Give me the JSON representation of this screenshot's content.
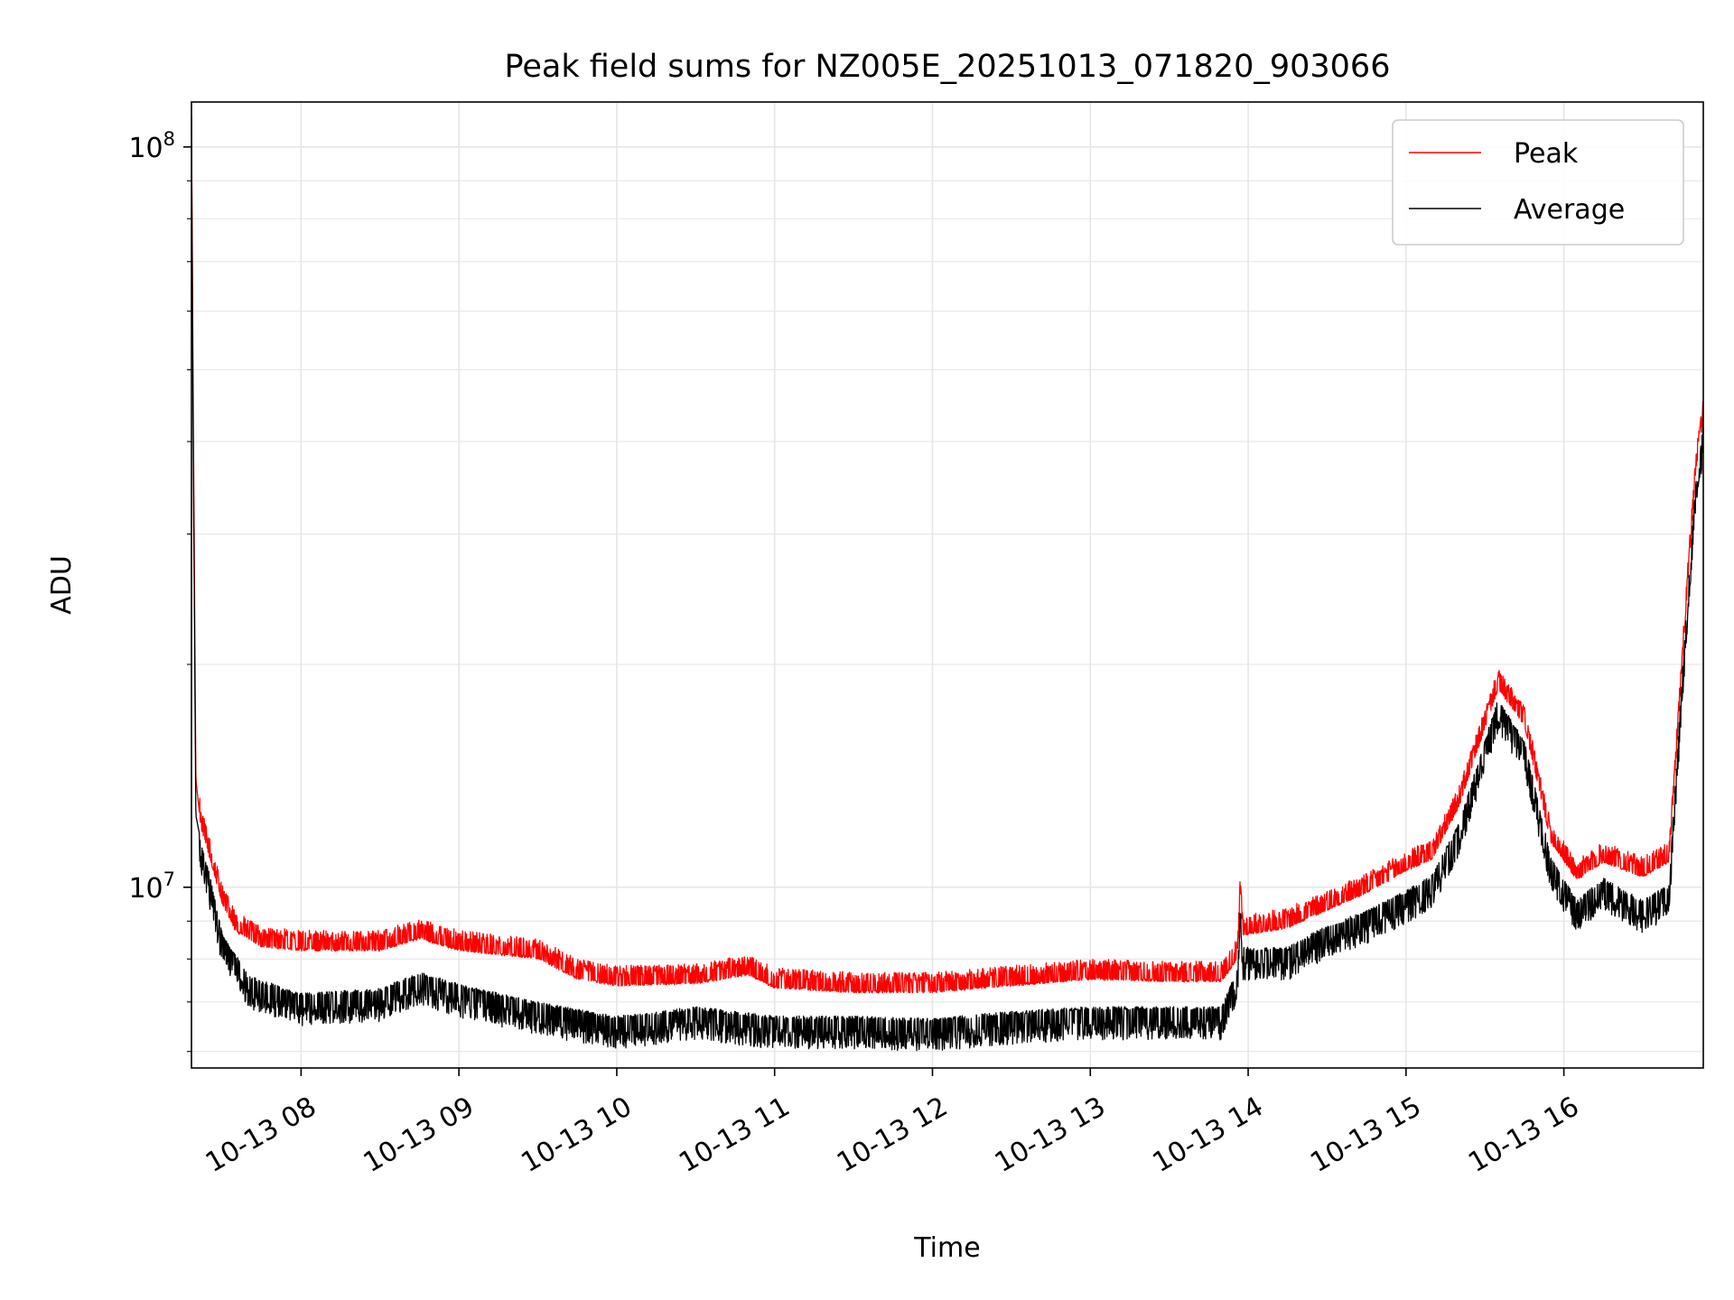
{
  "chart_data": {
    "type": "line",
    "title": "Peak field sums for NZ005E_20251013_071820_903066",
    "xlabel": "Time",
    "ylabel": "ADU",
    "y_scale": "log",
    "ylim": [
      5700000,
      115000000
    ],
    "xlim": [
      "2025-10-13T07:18:20",
      "2025-10-13T16:53:00"
    ],
    "x_ticks": [
      {
        "value": "2025-10-13T08:00",
        "label": "10-13 08"
      },
      {
        "value": "2025-10-13T09:00",
        "label": "10-13 09"
      },
      {
        "value": "2025-10-13T10:00",
        "label": "10-13 10"
      },
      {
        "value": "2025-10-13T11:00",
        "label": "10-13 11"
      },
      {
        "value": "2025-10-13T12:00",
        "label": "10-13 12"
      },
      {
        "value": "2025-10-13T13:00",
        "label": "10-13 13"
      },
      {
        "value": "2025-10-13T14:00",
        "label": "10-13 14"
      },
      {
        "value": "2025-10-13T15:00",
        "label": "10-13 15"
      },
      {
        "value": "2025-10-13T16:00",
        "label": "10-13 16"
      }
    ],
    "y_ticks": [
      {
        "value": 10000000,
        "base": "10",
        "exp": "7"
      },
      {
        "value": 100000000,
        "base": "10",
        "exp": "8"
      }
    ],
    "grid": true,
    "legend_position": "top-right",
    "series": [
      {
        "name": "Peak",
        "color": "#ff0000",
        "noise": "positive",
        "points": [
          [
            "2025-10-13T07:18:20",
            110000000
          ],
          [
            "2025-10-13T07:19",
            45000000
          ],
          [
            "2025-10-13T07:20",
            14000000
          ],
          [
            "2025-10-13T07:22",
            12000000
          ],
          [
            "2025-10-13T07:25",
            11000000
          ],
          [
            "2025-10-13T07:30",
            9500000
          ],
          [
            "2025-10-13T07:35",
            8700000
          ],
          [
            "2025-10-13T07:45",
            8300000
          ],
          [
            "2025-10-13T08:00",
            8200000
          ],
          [
            "2025-10-13T08:30",
            8200000
          ],
          [
            "2025-10-13T08:45",
            8500000
          ],
          [
            "2025-10-13T09:00",
            8200000
          ],
          [
            "2025-10-13T09:30",
            8000000
          ],
          [
            "2025-10-13T09:45",
            7500000
          ],
          [
            "2025-10-13T10:00",
            7350000
          ],
          [
            "2025-10-13T10:30",
            7400000
          ],
          [
            "2025-10-13T10:50",
            7600000
          ],
          [
            "2025-10-13T11:00",
            7300000
          ],
          [
            "2025-10-13T11:30",
            7200000
          ],
          [
            "2025-10-13T12:00",
            7200000
          ],
          [
            "2025-10-13T12:30",
            7350000
          ],
          [
            "2025-10-13T13:00",
            7500000
          ],
          [
            "2025-10-13T13:30",
            7450000
          ],
          [
            "2025-10-13T13:50",
            7450000
          ],
          [
            "2025-10-13T13:56",
            8000000
          ],
          [
            "2025-10-13T13:57",
            9800000
          ],
          [
            "2025-10-13T13:58",
            8600000
          ],
          [
            "2025-10-13T14:15",
            8800000
          ],
          [
            "2025-10-13T14:30",
            9300000
          ],
          [
            "2025-10-13T14:45",
            9800000
          ],
          [
            "2025-10-13T15:00",
            10500000
          ],
          [
            "2025-10-13T15:10",
            10900000
          ],
          [
            "2025-10-13T15:20",
            12800000
          ],
          [
            "2025-10-13T15:35",
            18500000
          ],
          [
            "2025-10-13T15:45",
            16500000
          ],
          [
            "2025-10-13T15:55",
            11500000
          ],
          [
            "2025-10-13T16:05",
            10200000
          ],
          [
            "2025-10-13T16:15",
            10800000
          ],
          [
            "2025-10-13T16:30",
            10300000
          ],
          [
            "2025-10-13T16:40",
            10800000
          ],
          [
            "2025-10-13T16:45",
            20000000
          ],
          [
            "2025-10-13T16:50",
            36000000
          ],
          [
            "2025-10-13T16:53",
            43000000
          ]
        ]
      },
      {
        "name": "Average",
        "color": "#000000",
        "noise": "negative",
        "points": [
          [
            "2025-10-13T07:18:20",
            110000000
          ],
          [
            "2025-10-13T07:19",
            40000000
          ],
          [
            "2025-10-13T07:20",
            12500000
          ],
          [
            "2025-10-13T07:22",
            11500000
          ],
          [
            "2025-10-13T07:25",
            10500000
          ],
          [
            "2025-10-13T07:30",
            8700000
          ],
          [
            "2025-10-13T07:40",
            7600000
          ],
          [
            "2025-10-13T08:00",
            7200000
          ],
          [
            "2025-10-13T08:30",
            7300000
          ],
          [
            "2025-10-13T08:45",
            7700000
          ],
          [
            "2025-10-13T09:00",
            7400000
          ],
          [
            "2025-10-13T09:30",
            7000000
          ],
          [
            "2025-10-13T10:00",
            6700000
          ],
          [
            "2025-10-13T10:30",
            6900000
          ],
          [
            "2025-10-13T11:00",
            6700000
          ],
          [
            "2025-10-13T11:30",
            6700000
          ],
          [
            "2025-10-13T12:00",
            6650000
          ],
          [
            "2025-10-13T12:30",
            6800000
          ],
          [
            "2025-10-13T13:00",
            6900000
          ],
          [
            "2025-10-13T13:30",
            6900000
          ],
          [
            "2025-10-13T13:50",
            6900000
          ],
          [
            "2025-10-13T13:56",
            7800000
          ],
          [
            "2025-10-13T13:57",
            9500000
          ],
          [
            "2025-10-13T13:58",
            8300000
          ],
          [
            "2025-10-13T14:15",
            8300000
          ],
          [
            "2025-10-13T14:30",
            8900000
          ],
          [
            "2025-10-13T14:45",
            9300000
          ],
          [
            "2025-10-13T15:00",
            9900000
          ],
          [
            "2025-10-13T15:10",
            10400000
          ],
          [
            "2025-10-13T15:20",
            12200000
          ],
          [
            "2025-10-13T15:35",
            18000000
          ],
          [
            "2025-10-13T15:45",
            15800000
          ],
          [
            "2025-10-13T15:55",
            11000000
          ],
          [
            "2025-10-13T16:05",
            9600000
          ],
          [
            "2025-10-13T16:15",
            10300000
          ],
          [
            "2025-10-13T16:30",
            9600000
          ],
          [
            "2025-10-13T16:40",
            10100000
          ],
          [
            "2025-10-13T16:45",
            19500000
          ],
          [
            "2025-10-13T16:50",
            35000000
          ],
          [
            "2025-10-13T16:53",
            42000000
          ]
        ]
      }
    ]
  }
}
